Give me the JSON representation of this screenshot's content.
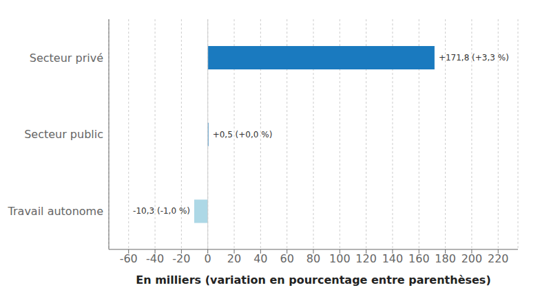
{
  "chart_data": {
    "type": "bar",
    "orientation": "horizontal",
    "xlabel": "En milliers (variation en pourcentage entre parenthèses)",
    "categories": [
      "Travail autonome",
      "Secteur public",
      "Secteur privé"
    ],
    "values": [
      -10.3,
      0.5,
      171.8
    ],
    "value_labels": [
      "-10,3 (-1,0 %)",
      "+0,5 (+0,0 %)",
      "+171,8 (+3,3 %)"
    ],
    "data_labels": true,
    "colors": [
      "#add8e6",
      "#1a7abf",
      "#1a7abf"
    ],
    "xlim": [
      -75,
      235
    ],
    "xticks": [
      -60,
      -40,
      -20,
      0,
      20,
      40,
      60,
      80,
      100,
      120,
      140,
      160,
      180,
      200,
      220
    ],
    "grid": true
  }
}
